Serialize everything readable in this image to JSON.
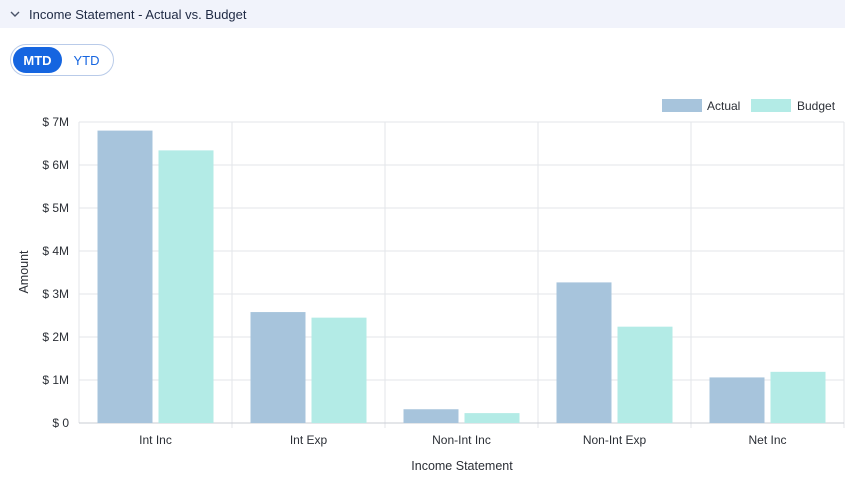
{
  "panel": {
    "title": "Income Statement - Actual vs. Budget"
  },
  "toggle": {
    "mtd": "MTD",
    "ytd": "YTD",
    "selected": "MTD"
  },
  "colors": {
    "actual": "#a7c4dc",
    "budget": "#b3ebe6",
    "grid": "#e3e5ea",
    "accent": "#1565e0"
  },
  "chart_data": {
    "type": "bar",
    "categories": [
      "Int Inc",
      "Int Exp",
      "Non-Int Inc",
      "Non-Int Exp",
      "Net Inc"
    ],
    "series": [
      {
        "name": "Actual",
        "values": [
          6.8,
          2.58,
          0.32,
          3.27,
          1.06
        ]
      },
      {
        "name": "Budget",
        "values": [
          6.34,
          2.45,
          0.23,
          2.24,
          1.19
        ]
      }
    ],
    "xlabel": "Income Statement",
    "ylabel": "Amount",
    "ylim": [
      0,
      7
    ],
    "yticks": [
      {
        "value": 0,
        "label": "$ 0"
      },
      {
        "value": 1,
        "label": "$ 1M"
      },
      {
        "value": 2,
        "label": "$ 2M"
      },
      {
        "value": 3,
        "label": "$ 3M"
      },
      {
        "value": 4,
        "label": "$ 4M"
      },
      {
        "value": 5,
        "label": "$ 5M"
      },
      {
        "value": 6,
        "label": "$ 6M"
      },
      {
        "value": 7,
        "label": "$ 7M"
      }
    ],
    "legend": "top-right",
    "grid": true
  }
}
